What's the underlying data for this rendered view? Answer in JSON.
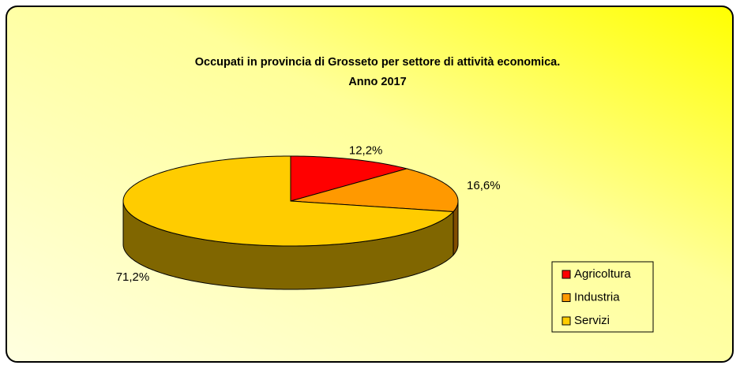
{
  "chart_data": {
    "type": "pie3d",
    "title": "Occupati in provincia di Grosseto per settore di attività economica.",
    "subtitle": "Anno 2017",
    "categories": [
      "Agricoltura",
      "Industria",
      "Servizi"
    ],
    "values": [
      12.2,
      16.6,
      71.2
    ],
    "value_labels": [
      "12,2%",
      "16,6%",
      "71,2%"
    ],
    "colors": [
      "#ff0000",
      "#ff9900",
      "#ffcc00"
    ],
    "legend": "right"
  }
}
